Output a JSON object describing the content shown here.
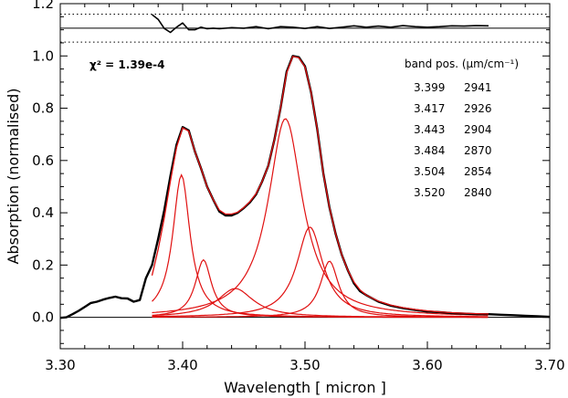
{
  "chart_data": {
    "type": "line",
    "title": "",
    "xlabel": "Wavelength [ micron ]",
    "ylabel": "Absorption (normalised)",
    "xlim": [
      3.3,
      3.7
    ],
    "ylim": [
      -0.12,
      1.2
    ],
    "xticks": [
      3.3,
      3.4,
      3.5,
      3.6,
      3.7
    ],
    "xtick_labels": [
      "3.30",
      "3.40",
      "3.50",
      "3.60",
      "3.70"
    ],
    "yticks": [
      0.0,
      0.2,
      0.4,
      0.6,
      0.8,
      1.0,
      1.2
    ],
    "ytick_labels": [
      "0.0",
      "0.2",
      "0.4",
      "0.6",
      "0.8",
      "1.0",
      "1.2"
    ],
    "grid": false,
    "chi2_label": "χ² = 1.39e-4",
    "band_table": {
      "header": "band pos. (μm/cm⁻¹)",
      "rows": [
        {
          "um": "3.399",
          "cm": "2941"
        },
        {
          "um": "3.417",
          "cm": "2926"
        },
        {
          "um": "3.443",
          "cm": "2904"
        },
        {
          "um": "3.484",
          "cm": "2870"
        },
        {
          "um": "3.504",
          "cm": "2854"
        },
        {
          "um": "3.520",
          "cm": "2840"
        }
      ]
    },
    "observed": {
      "color": "#000000",
      "points": [
        [
          3.3,
          -0.002
        ],
        [
          3.305,
          0.0
        ],
        [
          3.31,
          0.012
        ],
        [
          3.315,
          0.025
        ],
        [
          3.32,
          0.04
        ],
        [
          3.325,
          0.055
        ],
        [
          3.33,
          0.06
        ],
        [
          3.335,
          0.068
        ],
        [
          3.34,
          0.074
        ],
        [
          3.345,
          0.079
        ],
        [
          3.35,
          0.073
        ],
        [
          3.355,
          0.072
        ],
        [
          3.36,
          0.06
        ],
        [
          3.365,
          0.066
        ],
        [
          3.37,
          0.15
        ],
        [
          3.375,
          0.2
        ],
        [
          3.38,
          0.3
        ],
        [
          3.385,
          0.41
        ],
        [
          3.39,
          0.54
        ],
        [
          3.395,
          0.66
        ],
        [
          3.4,
          0.728
        ],
        [
          3.405,
          0.715
        ],
        [
          3.41,
          0.635
        ],
        [
          3.415,
          0.57
        ],
        [
          3.42,
          0.5
        ],
        [
          3.425,
          0.45
        ],
        [
          3.43,
          0.405
        ],
        [
          3.435,
          0.39
        ],
        [
          3.44,
          0.39
        ],
        [
          3.445,
          0.4
        ],
        [
          3.45,
          0.418
        ],
        [
          3.455,
          0.44
        ],
        [
          3.46,
          0.47
        ],
        [
          3.465,
          0.52
        ],
        [
          3.47,
          0.58
        ],
        [
          3.475,
          0.68
        ],
        [
          3.48,
          0.8
        ],
        [
          3.485,
          0.94
        ],
        [
          3.49,
          1.0
        ],
        [
          3.495,
          0.995
        ],
        [
          3.5,
          0.96
        ],
        [
          3.505,
          0.86
        ],
        [
          3.51,
          0.72
        ],
        [
          3.515,
          0.55
        ],
        [
          3.52,
          0.42
        ],
        [
          3.525,
          0.32
        ],
        [
          3.53,
          0.24
        ],
        [
          3.535,
          0.18
        ],
        [
          3.54,
          0.13
        ],
        [
          3.545,
          0.1
        ],
        [
          3.55,
          0.085
        ],
        [
          3.56,
          0.06
        ],
        [
          3.57,
          0.045
        ],
        [
          3.58,
          0.035
        ],
        [
          3.59,
          0.028
        ],
        [
          3.6,
          0.022
        ],
        [
          3.61,
          0.02
        ],
        [
          3.62,
          0.016
        ],
        [
          3.63,
          0.014
        ],
        [
          3.64,
          0.012
        ],
        [
          3.65,
          0.012
        ],
        [
          3.66,
          0.01
        ],
        [
          3.67,
          0.008
        ],
        [
          3.68,
          0.006
        ],
        [
          3.69,
          0.004
        ],
        [
          3.7,
          0.002
        ]
      ]
    },
    "fit_total": {
      "color": "#e01010",
      "points": [
        [
          3.375,
          0.16
        ],
        [
          3.38,
          0.26
        ],
        [
          3.385,
          0.38
        ],
        [
          3.39,
          0.52
        ],
        [
          3.395,
          0.65
        ],
        [
          3.4,
          0.725
        ],
        [
          3.405,
          0.712
        ],
        [
          3.41,
          0.635
        ],
        [
          3.415,
          0.57
        ],
        [
          3.42,
          0.5
        ],
        [
          3.425,
          0.45
        ],
        [
          3.43,
          0.41
        ],
        [
          3.435,
          0.395
        ],
        [
          3.44,
          0.395
        ],
        [
          3.445,
          0.402
        ],
        [
          3.45,
          0.42
        ],
        [
          3.455,
          0.443
        ],
        [
          3.46,
          0.473
        ],
        [
          3.465,
          0.52
        ],
        [
          3.47,
          0.58
        ],
        [
          3.475,
          0.68
        ],
        [
          3.48,
          0.8
        ],
        [
          3.485,
          0.935
        ],
        [
          3.49,
          0.998
        ],
        [
          3.495,
          0.993
        ],
        [
          3.5,
          0.958
        ],
        [
          3.505,
          0.86
        ],
        [
          3.51,
          0.72
        ],
        [
          3.515,
          0.55
        ],
        [
          3.52,
          0.42
        ],
        [
          3.525,
          0.32
        ],
        [
          3.53,
          0.24
        ],
        [
          3.535,
          0.18
        ],
        [
          3.54,
          0.135
        ],
        [
          3.545,
          0.105
        ],
        [
          3.55,
          0.085
        ],
        [
          3.56,
          0.062
        ],
        [
          3.57,
          0.047
        ],
        [
          3.58,
          0.037
        ],
        [
          3.59,
          0.03
        ],
        [
          3.6,
          0.025
        ],
        [
          3.61,
          0.021
        ],
        [
          3.62,
          0.018
        ],
        [
          3.63,
          0.016
        ],
        [
          3.64,
          0.014
        ],
        [
          3.65,
          0.013
        ]
      ]
    },
    "components": [
      {
        "center_um": 3.399,
        "amplitude": 0.545,
        "width_um": 0.0085,
        "color": "#e01010"
      },
      {
        "center_um": 3.417,
        "amplitude": 0.22,
        "width_um": 0.008,
        "color": "#e01010"
      },
      {
        "center_um": 3.443,
        "amplitude": 0.11,
        "width_um": 0.018,
        "color": "#e01010"
      },
      {
        "center_um": 3.484,
        "amplitude": 0.76,
        "width_um": 0.017,
        "color": "#e01010"
      },
      {
        "center_um": 3.504,
        "amplitude": 0.345,
        "width_um": 0.013,
        "color": "#e01010"
      },
      {
        "center_um": 3.52,
        "amplitude": 0.215,
        "width_um": 0.009,
        "color": "#e01010"
      }
    ],
    "component_range": [
      3.375,
      3.65
    ],
    "residual": {
      "color": "#000000",
      "points": [
        [
          3.375,
          1.158
        ],
        [
          3.38,
          1.14
        ],
        [
          3.385,
          1.105
        ],
        [
          3.39,
          1.09
        ],
        [
          3.395,
          1.11
        ],
        [
          3.4,
          1.126
        ],
        [
          3.405,
          1.1
        ],
        [
          3.41,
          1.1
        ],
        [
          3.415,
          1.11
        ],
        [
          3.42,
          1.104
        ],
        [
          3.425,
          1.106
        ],
        [
          3.43,
          1.104
        ],
        [
          3.44,
          1.108
        ],
        [
          3.45,
          1.106
        ],
        [
          3.46,
          1.112
        ],
        [
          3.47,
          1.104
        ],
        [
          3.48,
          1.112
        ],
        [
          3.49,
          1.11
        ],
        [
          3.5,
          1.105
        ],
        [
          3.51,
          1.112
        ],
        [
          3.52,
          1.105
        ],
        [
          3.53,
          1.11
        ],
        [
          3.54,
          1.115
        ],
        [
          3.55,
          1.11
        ],
        [
          3.56,
          1.114
        ],
        [
          3.57,
          1.11
        ],
        [
          3.58,
          1.116
        ],
        [
          3.59,
          1.112
        ],
        [
          3.6,
          1.11
        ],
        [
          3.61,
          1.112
        ],
        [
          3.62,
          1.115
        ],
        [
          3.63,
          1.114
        ],
        [
          3.64,
          1.116
        ],
        [
          3.65,
          1.115
        ]
      ],
      "baseline": 1.106,
      "dotted_levels": [
        1.16,
        1.053
      ]
    }
  }
}
